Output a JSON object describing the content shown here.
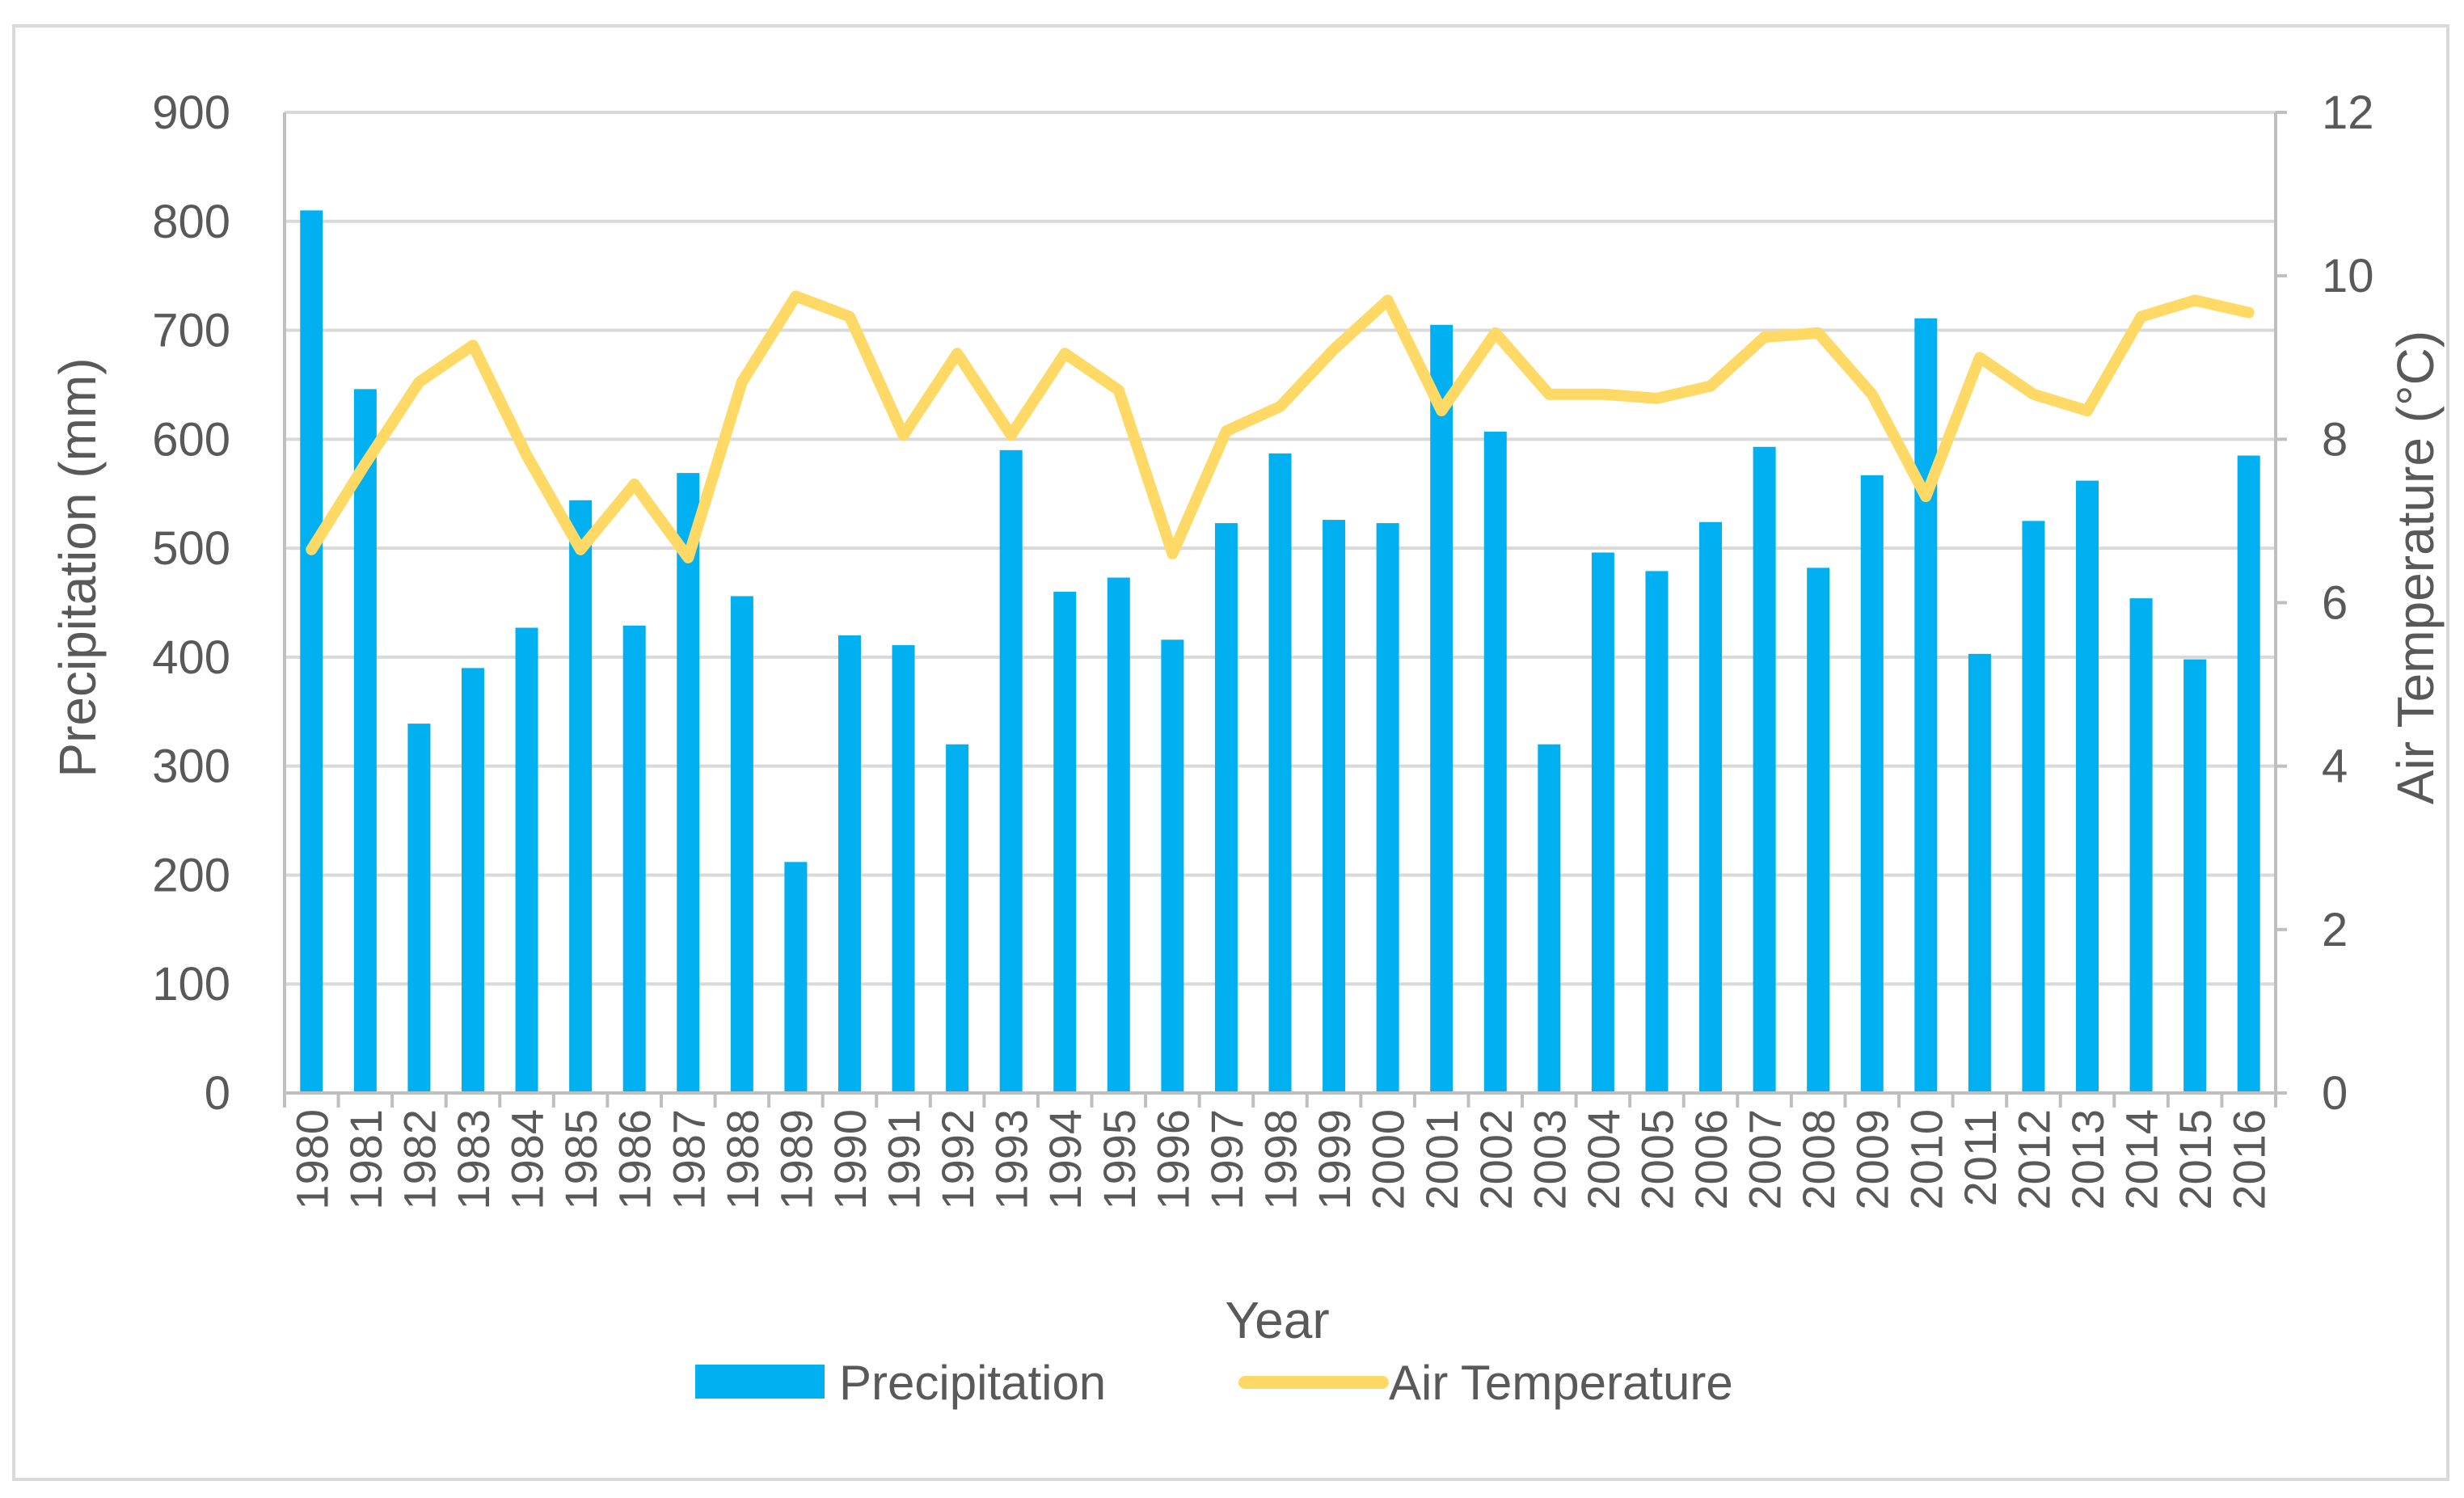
{
  "chart_data": {
    "type": "bar+line",
    "xlabel": "Year",
    "ylabel_left": "Precipitation (mm)",
    "ylabel_right": "Air Temperature (°C)",
    "ylim_left": [
      0,
      900
    ],
    "ylim_right": [
      0,
      12
    ],
    "yticks_left": [
      0,
      100,
      200,
      300,
      400,
      500,
      600,
      700,
      800,
      900
    ],
    "yticks_right": [
      0,
      2,
      4,
      6,
      8,
      10,
      12
    ],
    "grid": true,
    "legend_position": "bottom",
    "categories": [
      "1980",
      "1981",
      "1982",
      "1983",
      "1984",
      "1985",
      "1986",
      "1987",
      "1988",
      "1989",
      "1990",
      "1991",
      "1992",
      "1993",
      "1994",
      "1995",
      "1996",
      "1997",
      "1998",
      "1999",
      "2000",
      "2001",
      "2002",
      "2003",
      "2004",
      "2005",
      "2006",
      "2007",
      "2008",
      "2009",
      "2010",
      "2011",
      "2012",
      "2013",
      "2014",
      "2015",
      "2016"
    ],
    "series": [
      {
        "name": "Precipitation",
        "type": "bar",
        "axis": "left",
        "color": "#00B0F0",
        "values": [
          810,
          646,
          339,
          390,
          427,
          544,
          429,
          569,
          456,
          212,
          420,
          411,
          320,
          590,
          460,
          473,
          416,
          523,
          587,
          526,
          523,
          705,
          607,
          320,
          496,
          479,
          524,
          593,
          482,
          567,
          711,
          403,
          525,
          562,
          454,
          398,
          585
        ]
      },
      {
        "name": "Air Temperature",
        "type": "line",
        "axis": "right",
        "color": "#FFD966",
        "values": [
          6.65,
          7.7,
          8.7,
          9.15,
          7.8,
          6.65,
          7.45,
          6.55,
          8.7,
          9.75,
          9.5,
          8.05,
          9.05,
          8.05,
          9.05,
          8.6,
          6.6,
          8.1,
          8.4,
          9.1,
          9.7,
          8.35,
          9.3,
          8.55,
          8.55,
          8.5,
          8.65,
          9.25,
          9.3,
          8.55,
          7.3,
          9.0,
          8.55,
          8.35,
          9.5,
          9.7,
          9.55
        ]
      }
    ]
  }
}
